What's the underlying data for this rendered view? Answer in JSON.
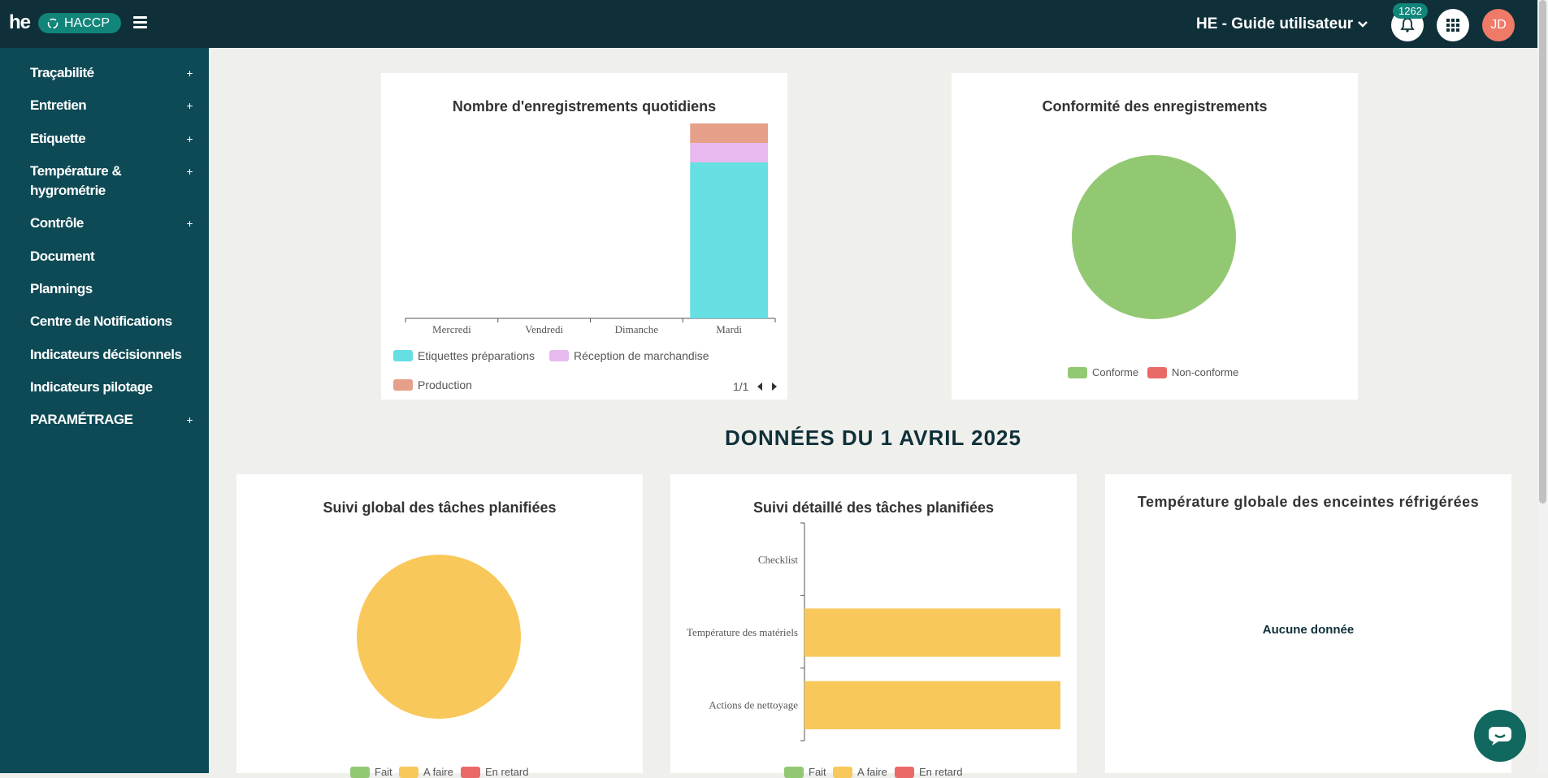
{
  "header": {
    "logo_text": "he",
    "product": "HACCP",
    "site": "HE - Guide utilisateur",
    "notification_count": "1262",
    "avatar_initials": "JD"
  },
  "sidebar": {
    "items": [
      {
        "label": "Traçabilité",
        "expandable": "+"
      },
      {
        "label": "Entretien",
        "expandable": "+"
      },
      {
        "label": "Etiquette",
        "expandable": "+"
      },
      {
        "label": "Température & hygrométrie",
        "expandable": "+"
      },
      {
        "label": "Contrôle",
        "expandable": "+"
      },
      {
        "label": "Document"
      },
      {
        "label": "Plannings"
      },
      {
        "label": "Centre de Notifications"
      },
      {
        "label": "Indicateurs décisionnels"
      },
      {
        "label": "Indicateurs pilotage"
      },
      {
        "label": "PARAMÉTRAGE",
        "expandable": "+"
      }
    ]
  },
  "section": {
    "title": "DONNÉES DU 1 AVRIL 2025"
  },
  "cards": {
    "daily": {
      "pager": "1/1"
    },
    "conformity": {},
    "global_tasks": {},
    "detailed_tasks": {},
    "temperature": {
      "title": "Température globale des enceintes réfrigérées",
      "empty": "Aucune donnée"
    }
  },
  "chart_data": [
    {
      "type": "bar",
      "stacked": true,
      "title": "Nombre d'enregistrements quotidiens",
      "categories": [
        "Mercredi",
        "Vendredi",
        "Dimanche",
        "Mardi"
      ],
      "series": [
        {
          "name": "Etiquettes préparations",
          "color": "#66dfe3",
          "values": [
            0,
            0,
            0,
            8
          ]
        },
        {
          "name": "Réception de marchandise",
          "color": "#e7b9ef",
          "values": [
            0,
            0,
            0,
            1
          ]
        },
        {
          "name": "Production",
          "color": "#e6a08a",
          "values": [
            0,
            0,
            0,
            1
          ]
        }
      ],
      "legend": "bottom"
    },
    {
      "type": "pie",
      "title": "Conformité des enregistrements",
      "categories": [
        "Conforme",
        "Non-conforme"
      ],
      "values": [
        100,
        0
      ],
      "colors": [
        "#93c873",
        "#ea6a68"
      ],
      "legend": "bottom"
    },
    {
      "type": "pie",
      "title": "Suivi global des tâches planifiées",
      "categories": [
        "Fait",
        "A faire",
        "En retard"
      ],
      "values": [
        0,
        100,
        0
      ],
      "colors": [
        "#93c873",
        "#f9c85a",
        "#ea6a68"
      ],
      "legend": "bottom"
    },
    {
      "type": "bar",
      "orientation": "horizontal",
      "title": "Suivi détaillé des tâches planifiées",
      "categories": [
        "Checklist",
        "Température des matériels",
        "Actions de nettoyage"
      ],
      "series": [
        {
          "name": "A faire",
          "color": "#f9c85a",
          "values": [
            0,
            1,
            1
          ]
        }
      ],
      "legend_items": [
        {
          "name": "Fait",
          "color": "#93c873"
        },
        {
          "name": "A faire",
          "color": "#f9c85a"
        },
        {
          "name": "En retard",
          "color": "#ea6a68"
        }
      ],
      "legend": "bottom"
    }
  ]
}
